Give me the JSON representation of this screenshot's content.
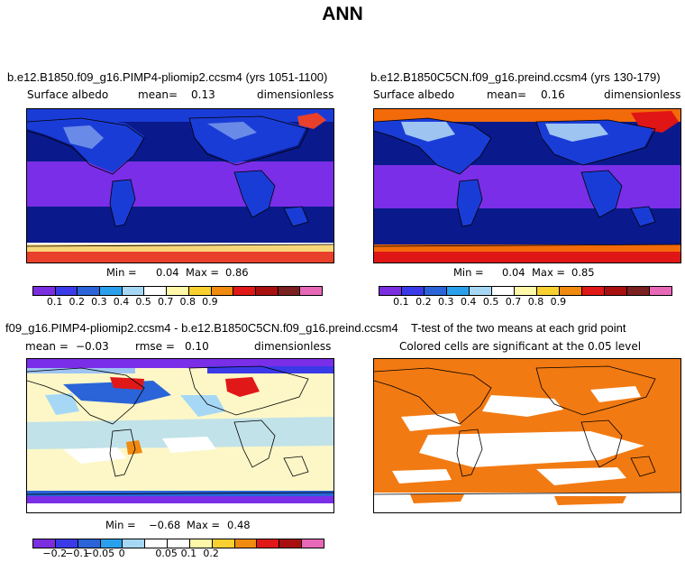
{
  "figure_title": "ANN",
  "colors": {
    "ocean_purple": "#7a2ee8",
    "navy": "#0a1a8c",
    "blue": "#1a3cd6",
    "ice_orange": "#f26a0a",
    "ice_red": "#e01515",
    "white": "#ffffff",
    "orange_sig": "#f27a12",
    "cream": "#fdf7c8"
  },
  "panels": {
    "top_left": {
      "title": "b.e12.B1850.f09_g16.PIMP4-pliomip2.ccsm4 (yrs 1051-1100)",
      "field": "Surface albedo",
      "mean_label": "mean=",
      "mean_value": "0.13",
      "units": "dimensionless",
      "min_label": "Min =",
      "min_value": "0.04",
      "max_label": "Max =",
      "max_value": "0.86",
      "colorbar": [
        "#7b2ee0",
        "#3a3ae8",
        "#2a64d8",
        "#2aa0ec",
        "#a6d8f6",
        "#ffffff",
        "#fff8a8",
        "#f8d030",
        "#f08a10",
        "#e01818",
        "#a81010",
        "#7a2020",
        "#e868b8"
      ],
      "ticks": [
        "0.1",
        "0.2",
        "0.3",
        "0.4",
        "0.5",
        "0.7",
        "0.8",
        "0.9"
      ]
    },
    "top_right": {
      "title": "b.e12.B1850C5CN.f09_g16.preind.ccsm4 (yrs 130-179)",
      "field": "Surface albedo",
      "mean_label": "mean=",
      "mean_value": "0.16",
      "units": "dimensionless",
      "min_label": "Min =",
      "min_value": "0.04",
      "max_label": "Max =",
      "max_value": "0.85",
      "colorbar": [
        "#7b2ee0",
        "#3a3ae8",
        "#2a64d8",
        "#2aa0ec",
        "#a6d8f6",
        "#ffffff",
        "#fff8a8",
        "#f8d030",
        "#f08a10",
        "#e01818",
        "#a81010",
        "#7a2020",
        "#e868b8"
      ],
      "ticks": [
        "0.1",
        "0.2",
        "0.3",
        "0.4",
        "0.5",
        "0.7",
        "0.8",
        "0.9"
      ]
    },
    "bottom_left": {
      "title": "f09_g16.PIMP4-pliomip2.ccsm4 - b.e12.B1850C5CN.f09_g16.preind.ccsm4",
      "mean_label": "mean =",
      "mean_value": "−0.03",
      "rmse_label": "rmse =",
      "rmse_value": "0.10",
      "units": "dimensionless",
      "min_label": "Min =",
      "min_value": "−0.68",
      "max_label": "Max =",
      "max_value": "0.48",
      "colorbar": [
        "#7b2ee0",
        "#3a3ae8",
        "#2a64d8",
        "#2aa0ec",
        "#a6d8f6",
        "#ffffff",
        "#ffffff",
        "#fff8a8",
        "#f8d030",
        "#f08a10",
        "#e01818",
        "#a81010",
        "#e868b8"
      ],
      "ticks": [
        "−0.2",
        "−0.1",
        "−0.05",
        "0",
        "0.05",
        "0.1",
        "0.2"
      ]
    },
    "bottom_right": {
      "title": "T-test of the two means at each grid point",
      "subtitle": "Colored cells are significant at the 0.05 level"
    }
  }
}
